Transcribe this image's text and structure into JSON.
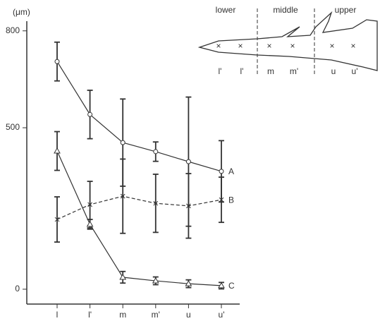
{
  "chart_data": {
    "type": "line",
    "y_label": "(μm)",
    "categories": [
      "l",
      "l'",
      "m",
      "m'",
      "u",
      "u'"
    ],
    "ylim": [
      -46,
      830
    ],
    "yticks": [
      0,
      500,
      800
    ],
    "series": [
      {
        "name": "A",
        "color": "#333333",
        "marker": "circle",
        "dash": false,
        "values": [
          705,
          541,
          454,
          426,
          395,
          365
        ],
        "errors": [
          60,
          75,
          135,
          30,
          200,
          95
        ]
      },
      {
        "name": "B",
        "color": "#333333",
        "marker": "x",
        "dash": true,
        "values": [
          216,
          262,
          288,
          266,
          258,
          277
        ],
        "errors": [
          70,
          72,
          115,
          90,
          100,
          70
        ]
      },
      {
        "name": "C",
        "color": "#333333",
        "marker": "triangle",
        "dash": false,
        "values": [
          428,
          201,
          37,
          26,
          17,
          11
        ],
        "errors": [
          60,
          15,
          18,
          12,
          12,
          10
        ]
      }
    ]
  },
  "inset": {
    "regions": [
      "lower",
      "middle",
      "upper"
    ],
    "positions": [
      "l'",
      "l'",
      "m",
      "m'",
      "u",
      "u'"
    ]
  }
}
